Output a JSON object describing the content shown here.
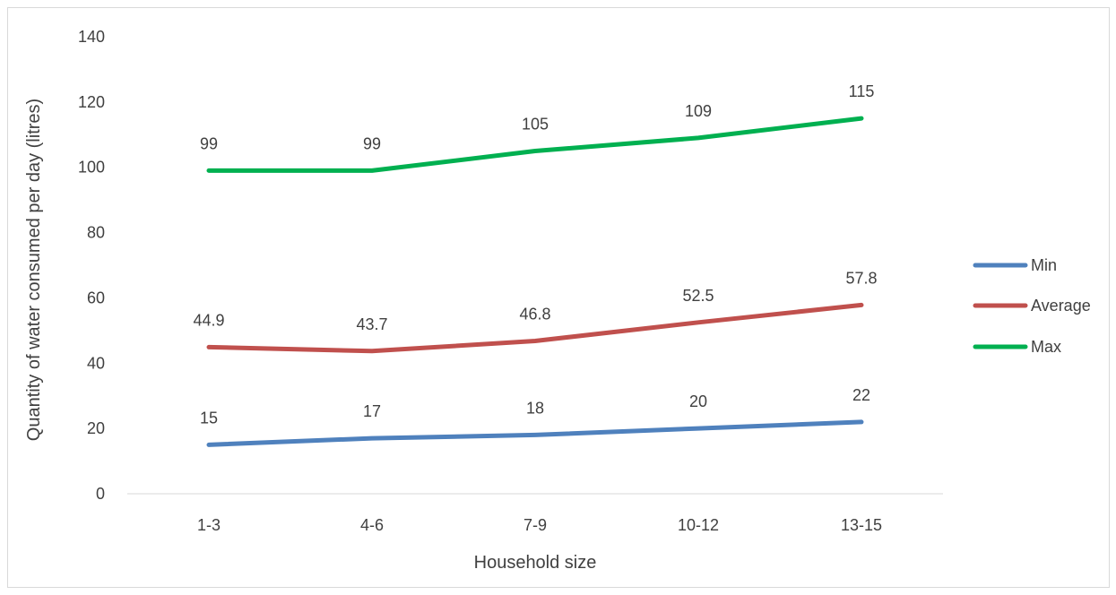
{
  "chart_data": {
    "type": "line",
    "categories": [
      "1-3",
      "4-6",
      "7-9",
      "10-12",
      "13-15"
    ],
    "series": [
      {
        "name": "Min",
        "values": [
          15,
          17,
          18,
          20,
          22
        ],
        "color": "#4F81BD"
      },
      {
        "name": "Average",
        "values": [
          44.9,
          43.7,
          46.8,
          52.5,
          57.8
        ],
        "color": "#C0504D"
      },
      {
        "name": "Max",
        "values": [
          99,
          99,
          105,
          109,
          115
        ],
        "color": "#00B050"
      }
    ],
    "data_labels": [
      [
        "15",
        "17",
        "18",
        "20",
        "22"
      ],
      [
        "44.9",
        "43.7",
        "46.8",
        "52.5",
        "57.8"
      ],
      [
        "99",
        "99",
        "105",
        "109",
        "115"
      ]
    ],
    "title": "",
    "xlabel": "Household size",
    "ylabel": "Quantity of water consumed per day (litres)",
    "ylim": [
      0,
      140
    ],
    "yticks": [
      0,
      20,
      40,
      60,
      80,
      100,
      120,
      140
    ],
    "ytick_labels": [
      "0",
      "20",
      "40",
      "60",
      "80",
      "100",
      "120",
      "140"
    ],
    "grid": false,
    "legend_position": "right",
    "axis_color": "#d9d9d9",
    "text_color": "#404040"
  }
}
